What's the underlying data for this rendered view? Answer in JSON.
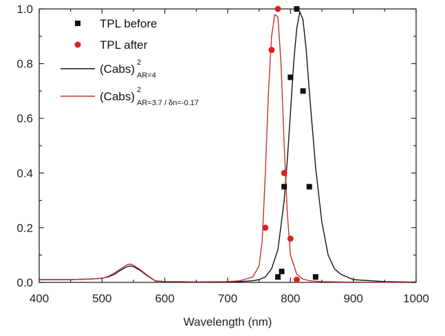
{
  "chart_data": {
    "type": "line",
    "xlabel": "Wavelength (nm)",
    "ylabel": "",
    "title": "",
    "xlim": [
      400,
      1000
    ],
    "ylim": [
      0,
      1.0
    ],
    "xticks": [
      400,
      500,
      600,
      700,
      800,
      900,
      1000
    ],
    "yticks": [
      0.0,
      0.2,
      0.4,
      0.6,
      0.8,
      1.0
    ],
    "xtick_labels": [
      "400",
      "500",
      "600",
      "700",
      "800",
      "900",
      "1000"
    ],
    "ytick_labels": [
      "0.0",
      "0.2",
      "0.4",
      "0.6",
      "0.8",
      "1.0"
    ],
    "grid": false,
    "legend_position": "top-left",
    "series": [
      {
        "name": "TPL before",
        "kind": "scatter",
        "marker": "square",
        "color": "#111111",
        "x": [
          780,
          786,
          790,
          800,
          810,
          820,
          830,
          840
        ],
        "y": [
          0.02,
          0.04,
          0.35,
          0.75,
          1.0,
          0.7,
          0.35,
          0.02
        ]
      },
      {
        "name": "TPL after",
        "kind": "scatter",
        "marker": "circle",
        "color": "#e02020",
        "x": [
          760,
          770,
          780,
          790,
          800,
          810
        ],
        "y": [
          0.2,
          0.85,
          1.0,
          0.4,
          0.16,
          0.01
        ]
      },
      {
        "name": "(Cabs)",
        "name_sup": "2",
        "name_sub": "AR=4",
        "kind": "line",
        "color": "#111111",
        "x": [
          400,
          450,
          480,
          500,
          510,
          520,
          530,
          540,
          545,
          550,
          560,
          570,
          580,
          585,
          600,
          650,
          700,
          720,
          740,
          750,
          760,
          770,
          780,
          790,
          795,
          800,
          805,
          810,
          815,
          820,
          825,
          830,
          840,
          850,
          860,
          870,
          880,
          900,
          950,
          1000
        ],
        "y": [
          0.01,
          0.01,
          0.012,
          0.015,
          0.02,
          0.03,
          0.045,
          0.058,
          0.06,
          0.058,
          0.045,
          0.028,
          0.012,
          0.005,
          0.003,
          0.002,
          0.002,
          0.003,
          0.006,
          0.01,
          0.02,
          0.05,
          0.12,
          0.3,
          0.45,
          0.62,
          0.8,
          0.93,
          0.99,
          0.96,
          0.85,
          0.7,
          0.42,
          0.22,
          0.1,
          0.05,
          0.03,
          0.01,
          0.003,
          0.001
        ]
      },
      {
        "name": "(Cabs)",
        "name_sup": "2",
        "name_sub": "AR=3.7 / δn=-0.17",
        "kind": "line",
        "color": "#c0302e",
        "x": [
          400,
          450,
          480,
          500,
          510,
          520,
          530,
          540,
          545,
          550,
          560,
          570,
          580,
          585,
          600,
          650,
          700,
          720,
          740,
          750,
          755,
          760,
          765,
          770,
          775,
          780,
          785,
          790,
          795,
          800,
          810,
          820,
          830,
          850,
          900,
          1000
        ],
        "y": [
          0.01,
          0.01,
          0.012,
          0.015,
          0.022,
          0.035,
          0.05,
          0.065,
          0.067,
          0.063,
          0.048,
          0.03,
          0.013,
          0.006,
          0.003,
          0.002,
          0.003,
          0.006,
          0.02,
          0.06,
          0.15,
          0.4,
          0.7,
          0.9,
          0.98,
          0.97,
          0.8,
          0.5,
          0.25,
          0.1,
          0.03,
          0.012,
          0.006,
          0.003,
          0.001,
          0.0
        ]
      }
    ]
  }
}
